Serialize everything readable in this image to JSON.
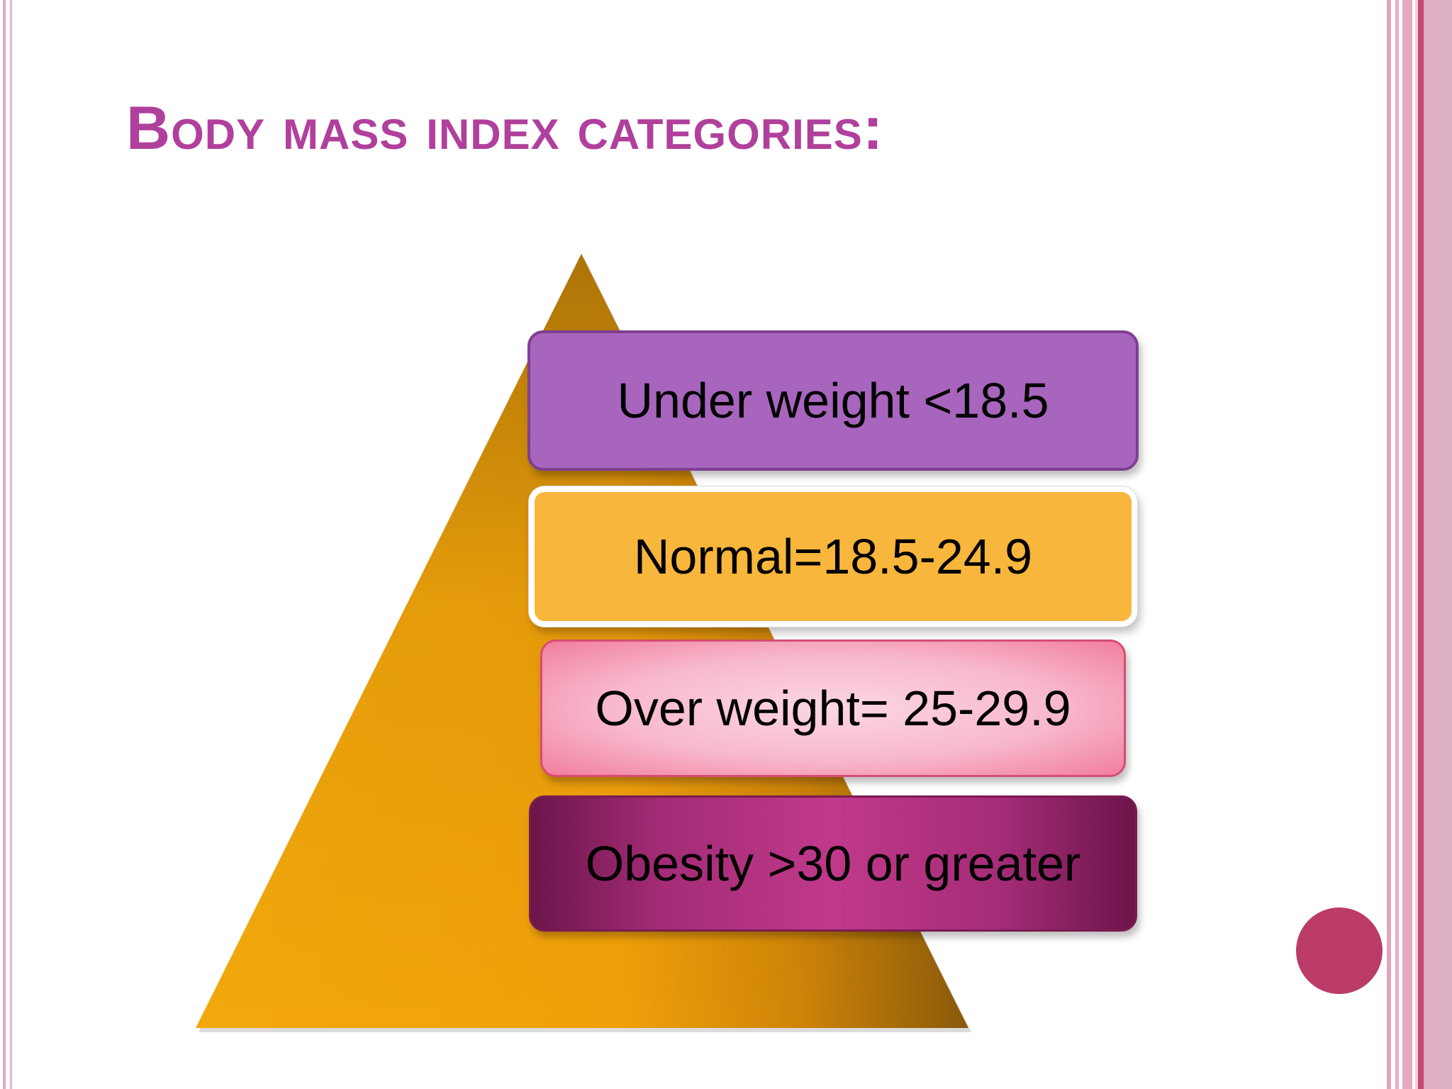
{
  "slide": {
    "title": "Body mass index categories:"
  },
  "diagram": {
    "type": "pyramid",
    "categories": [
      {
        "label": "Under weight <18.5",
        "color": "#a865bd"
      },
      {
        "label": "Normal=18.5-24.9",
        "color": "#f8b63c"
      },
      {
        "label": "Over weight= 25-29.9",
        "color": "#f8b8cc"
      },
      {
        "label": "Obesity >30 or greater",
        "color": "#b0327f"
      }
    ],
    "pyramid_color": "#f0a10a",
    "accent_dot_color": "#ba3b68"
  }
}
